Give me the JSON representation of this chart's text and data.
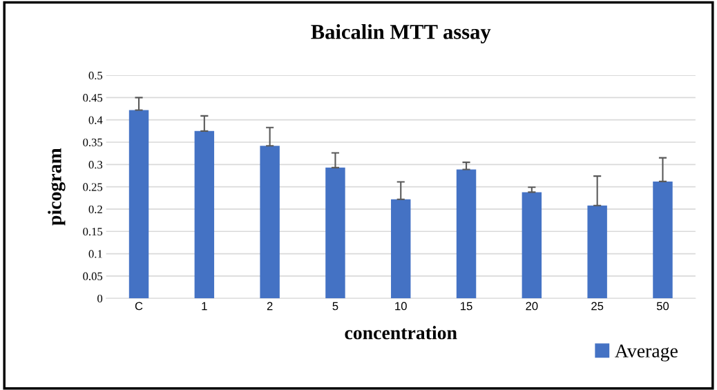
{
  "chart_data": {
    "type": "bar",
    "title": "Baicalin MTT assay",
    "xlabel": "concentration",
    "ylabel": "picogram",
    "categories": [
      "C",
      "1",
      "2",
      "5",
      "10",
      "15",
      "20",
      "25",
      "50"
    ],
    "series": [
      {
        "name": "Average",
        "color": "#4472c4",
        "values": [
          0.422,
          0.375,
          0.342,
          0.293,
          0.222,
          0.289,
          0.238,
          0.208,
          0.262
        ],
        "errors": [
          [
            0.422,
            0.45
          ],
          [
            0.375,
            0.409
          ],
          [
            0.342,
            0.383
          ],
          [
            0.293,
            0.326
          ],
          [
            0.222,
            0.261
          ],
          [
            0.289,
            0.305
          ],
          [
            0.238,
            0.249
          ],
          [
            0.208,
            0.274
          ],
          [
            0.262,
            0.315
          ]
        ]
      }
    ],
    "ylim": [
      0,
      0.5
    ],
    "yticks": [
      0,
      0.05,
      0.1,
      0.15,
      0.2,
      0.25,
      0.3,
      0.35,
      0.4,
      0.45,
      0.5
    ],
    "grid": "y",
    "legend": "bottom right"
  }
}
